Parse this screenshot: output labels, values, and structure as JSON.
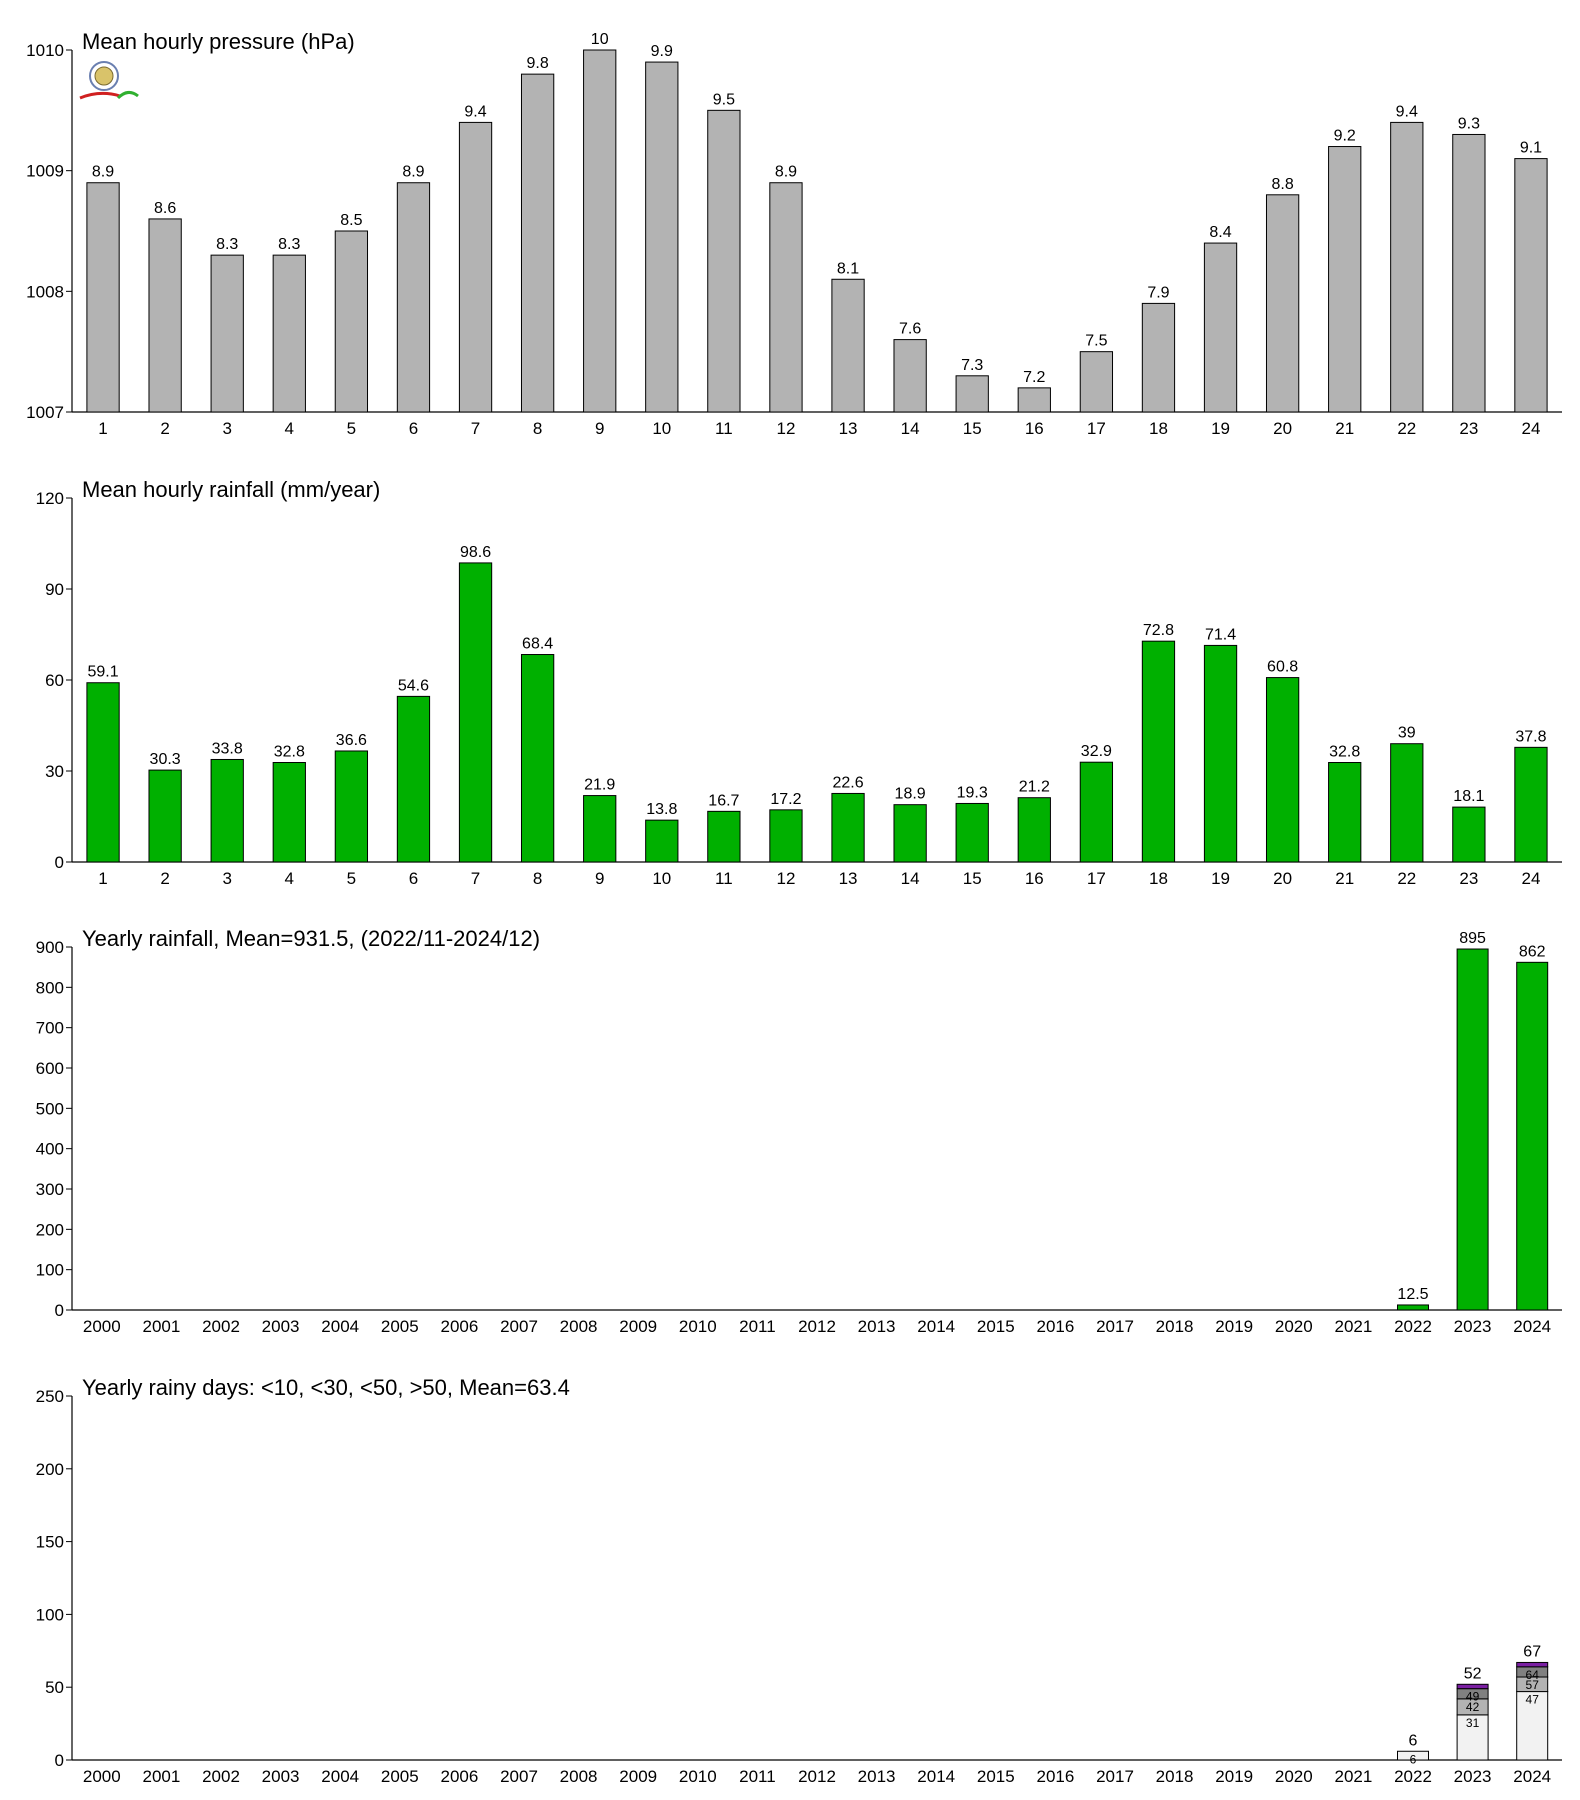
{
  "charts": [
    {
      "id": "pressure",
      "type": "bar",
      "title": "Mean hourly pressure (hPa)",
      "categories": [
        "1",
        "2",
        "3",
        "4",
        "5",
        "6",
        "7",
        "8",
        "9",
        "10",
        "11",
        "12",
        "13",
        "14",
        "15",
        "16",
        "17",
        "18",
        "19",
        "20",
        "21",
        "22",
        "23",
        "24"
      ],
      "values": [
        1008.9,
        1008.6,
        1008.3,
        1008.3,
        1008.5,
        1008.9,
        1009.4,
        1009.8,
        1010.0,
        1009.9,
        1009.5,
        1008.9,
        1008.1,
        1007.6,
        1007.3,
        1007.2,
        1007.5,
        1007.9,
        1008.4,
        1008.8,
        1009.2,
        1009.4,
        1009.3,
        1009.1
      ],
      "data_labels": [
        "8.9",
        "8.6",
        "8.3",
        "8.3",
        "8.5",
        "8.9",
        "9.4",
        "9.8",
        "10",
        "9.9",
        "9.5",
        "8.9",
        "8.1",
        "7.6",
        "7.3",
        "7.2",
        "7.5",
        "7.9",
        "8.4",
        "8.8",
        "9.2",
        "9.4",
        "9.3",
        "9.1"
      ],
      "ylim": [
        1007,
        1010
      ],
      "yticks": [
        1007,
        1008,
        1009,
        1010
      ],
      "color": "#b3b3b3"
    },
    {
      "id": "hourly-rain",
      "type": "bar",
      "title": "Mean hourly rainfall (mm/year)",
      "categories": [
        "1",
        "2",
        "3",
        "4",
        "5",
        "6",
        "7",
        "8",
        "9",
        "10",
        "11",
        "12",
        "13",
        "14",
        "15",
        "16",
        "17",
        "18",
        "19",
        "20",
        "21",
        "22",
        "23",
        "24"
      ],
      "values": [
        59.1,
        30.3,
        33.8,
        32.8,
        36.6,
        54.6,
        98.6,
        68.4,
        21.9,
        13.8,
        16.7,
        17.2,
        22.6,
        18.9,
        19.3,
        21.2,
        32.9,
        72.8,
        71.4,
        60.8,
        32.8,
        39,
        18.1,
        37.8
      ],
      "data_labels": [
        "59.1",
        "30.3",
        "33.8",
        "32.8",
        "36.6",
        "54.6",
        "98.6",
        "68.4",
        "21.9",
        "13.8",
        "16.7",
        "17.2",
        "22.6",
        "18.9",
        "19.3",
        "21.2",
        "32.9",
        "72.8",
        "71.4",
        "60.8",
        "32.8",
        "39",
        "18.1",
        "37.8"
      ],
      "ylim": [
        0,
        120
      ],
      "yticks": [
        0,
        30,
        60,
        90,
        120
      ],
      "color": "#00b000"
    },
    {
      "id": "yearly-rain",
      "type": "bar",
      "title": "Yearly rainfall, Mean=931.5, (2022/11-2024/12)",
      "categories": [
        "2000",
        "2001",
        "2002",
        "2003",
        "2004",
        "2005",
        "2006",
        "2007",
        "2008",
        "2009",
        "2010",
        "2011",
        "2012",
        "2013",
        "2014",
        "2015",
        "2016",
        "2017",
        "2018",
        "2019",
        "2020",
        "2021",
        "2022",
        "2023",
        "2024"
      ],
      "values": [
        null,
        null,
        null,
        null,
        null,
        null,
        null,
        null,
        null,
        null,
        null,
        null,
        null,
        null,
        null,
        null,
        null,
        null,
        null,
        null,
        null,
        null,
        12.5,
        895,
        862
      ],
      "data_labels": [
        "",
        "",
        "",
        "",
        "",
        "",
        "",
        "",
        "",
        "",
        "",
        "",
        "",
        "",
        "",
        "",
        "",
        "",
        "",
        "",
        "",
        "",
        "12.5",
        "895",
        "862"
      ],
      "ylim": [
        0,
        900
      ],
      "yticks": [
        0,
        100,
        200,
        300,
        400,
        500,
        600,
        700,
        800,
        900
      ],
      "color": "#00b000"
    },
    {
      "id": "rainy-days",
      "type": "stacked-bar",
      "title": "Yearly rainy days: <10, <30, <50, >50, Mean=63.4",
      "categories": [
        "2000",
        "2001",
        "2002",
        "2003",
        "2004",
        "2005",
        "2006",
        "2007",
        "2008",
        "2009",
        "2010",
        "2011",
        "2012",
        "2013",
        "2014",
        "2015",
        "2016",
        "2017",
        "2018",
        "2019",
        "2020",
        "2021",
        "2022",
        "2023",
        "2024"
      ],
      "ylim": [
        0,
        250
      ],
      "yticks": [
        0,
        50,
        100,
        150,
        200,
        250
      ],
      "segment_colors": [
        "#f2f2f2",
        "#b3b3b3",
        "#808080",
        "#7a1fa2"
      ],
      "stacks": [
        {
          "category": "2022",
          "cumulative": [
            6,
            6,
            6,
            6
          ],
          "segment_labels": [
            "6",
            "",
            "",
            ""
          ],
          "total_label": "6"
        },
        {
          "category": "2023",
          "cumulative": [
            31,
            42,
            49,
            52
          ],
          "segment_labels": [
            "31",
            "42",
            "49",
            ""
          ],
          "total_label": "52"
        },
        {
          "category": "2024",
          "cumulative": [
            47,
            57,
            64,
            67
          ],
          "segment_labels": [
            "47",
            "57",
            "64",
            ""
          ],
          "total_label": "67"
        }
      ]
    }
  ]
}
